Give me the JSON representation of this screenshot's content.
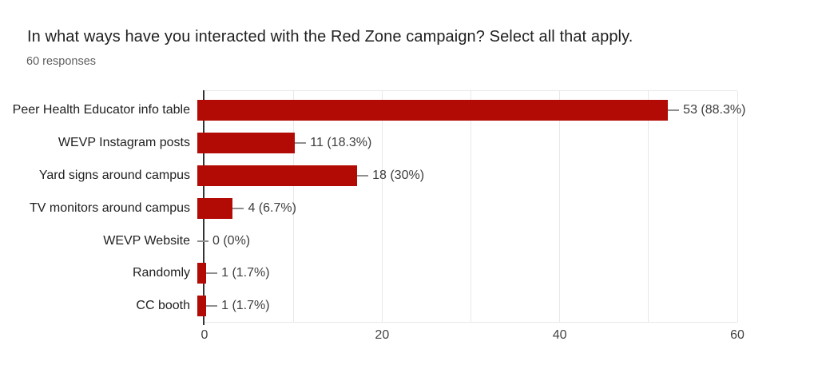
{
  "header": {
    "title": "In what ways have you interacted with the Red Zone campaign? Select all that apply.",
    "subtitle": "60 responses"
  },
  "chart_data": {
    "type": "bar",
    "orientation": "horizontal",
    "title": "In what ways have you interacted with the Red Zone campaign? Select all that apply.",
    "subtitle": "60 responses",
    "categories": [
      "Peer Health Educator info table",
      "WEVP Instagram posts",
      "Yard signs around campus",
      "TV monitors around campus",
      "WEVP Website",
      "Randomly",
      "CC booth"
    ],
    "values": [
      53,
      11,
      18,
      4,
      0,
      1,
      1
    ],
    "value_labels": [
      "53 (88.3%)",
      "11 (18.3%)",
      "18 (30%)",
      "4 (6.7%)",
      "0 (0%)",
      "1 (1.7%)",
      "1 (1.7%)"
    ],
    "xlabel": "",
    "ylabel": "",
    "xlim": [
      0,
      60
    ],
    "x_ticks": [
      0,
      20,
      40,
      60
    ],
    "gridline_step": 10,
    "grid": true,
    "legend": false,
    "colors": {
      "bar": "#b20b05",
      "title_text": "#212121",
      "subtitle_text": "#5f5f5f",
      "category_text": "#212121",
      "value_text": "#3d3d3d",
      "tick_text": "#444444",
      "axis_line": "#333333",
      "gridline": "#e8e8e8",
      "connector": "#8f8f8f",
      "background": "#ffffff"
    }
  }
}
